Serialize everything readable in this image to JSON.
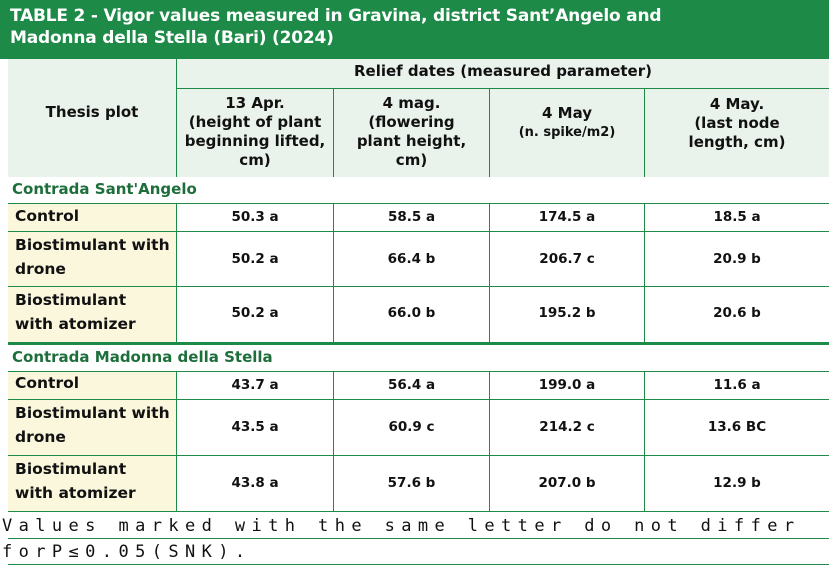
{
  "title": {
    "line1": "TABLE 2 - Vigor values measured in Gravina, district Sant’Angelo and",
    "line2": "Madonna della Stella (Bari) (2024)"
  },
  "header": {
    "thesis": "Thesis plot",
    "relief": "Relief dates (measured parameter)",
    "columns": [
      {
        "line1": "13 Apr.",
        "line2": "(height of plant",
        "line3": "beginning lifted,",
        "line4": "cm)"
      },
      {
        "line1": "4 mag.",
        "line2": "(flowering",
        "line3": "plant height,",
        "line4": "cm)"
      },
      {
        "line1": "4 May",
        "line2": "(n. spike/m2)"
      },
      {
        "line1": "4 May.",
        "line2": "(last node",
        "line3": "length, cm)"
      }
    ]
  },
  "sections": [
    {
      "name": "Contrada Sant'Angelo",
      "rows": [
        {
          "label1": "Control",
          "label2": "",
          "values": [
            "50.3 a",
            "58.5 a",
            "174.5 a",
            "18.5 a"
          ]
        },
        {
          "label1": "Biostimulant with",
          "label2": "drone",
          "values": [
            "50.2 a",
            "66.4 b",
            "206.7 c",
            "20.9 b"
          ]
        },
        {
          "label1": "Biostimulant",
          "label2": "with atomizer",
          "values": [
            "50.2 a",
            "66.0 b",
            "195.2 b",
            "20.6 b"
          ]
        }
      ]
    },
    {
      "name": "Contrada Madonna della Stella",
      "rows": [
        {
          "label1": "Control",
          "label2": "",
          "values": [
            "43.7 a",
            "56.4 a",
            "199.0 a",
            "11.6 a"
          ]
        },
        {
          "label1": "Biostimulant with",
          "label2": "drone",
          "values": [
            "43.5 a",
            "60.9 c",
            "214.2 c",
            "13.6 BC"
          ]
        },
        {
          "label1": "Biostimulant",
          "label2": "with atomizer",
          "values": [
            "43.8 a",
            "57.6 b",
            "207.0 b",
            "12.9 b"
          ]
        }
      ]
    }
  ],
  "footnote": {
    "line1": "Values marked with the same letter do not differ",
    "line2": "forP≤0.05(SNK)."
  },
  "colors": {
    "accent": "#1d8a47",
    "label_bg": "#fbf7dd",
    "header_bg": "#eaf2ec"
  }
}
